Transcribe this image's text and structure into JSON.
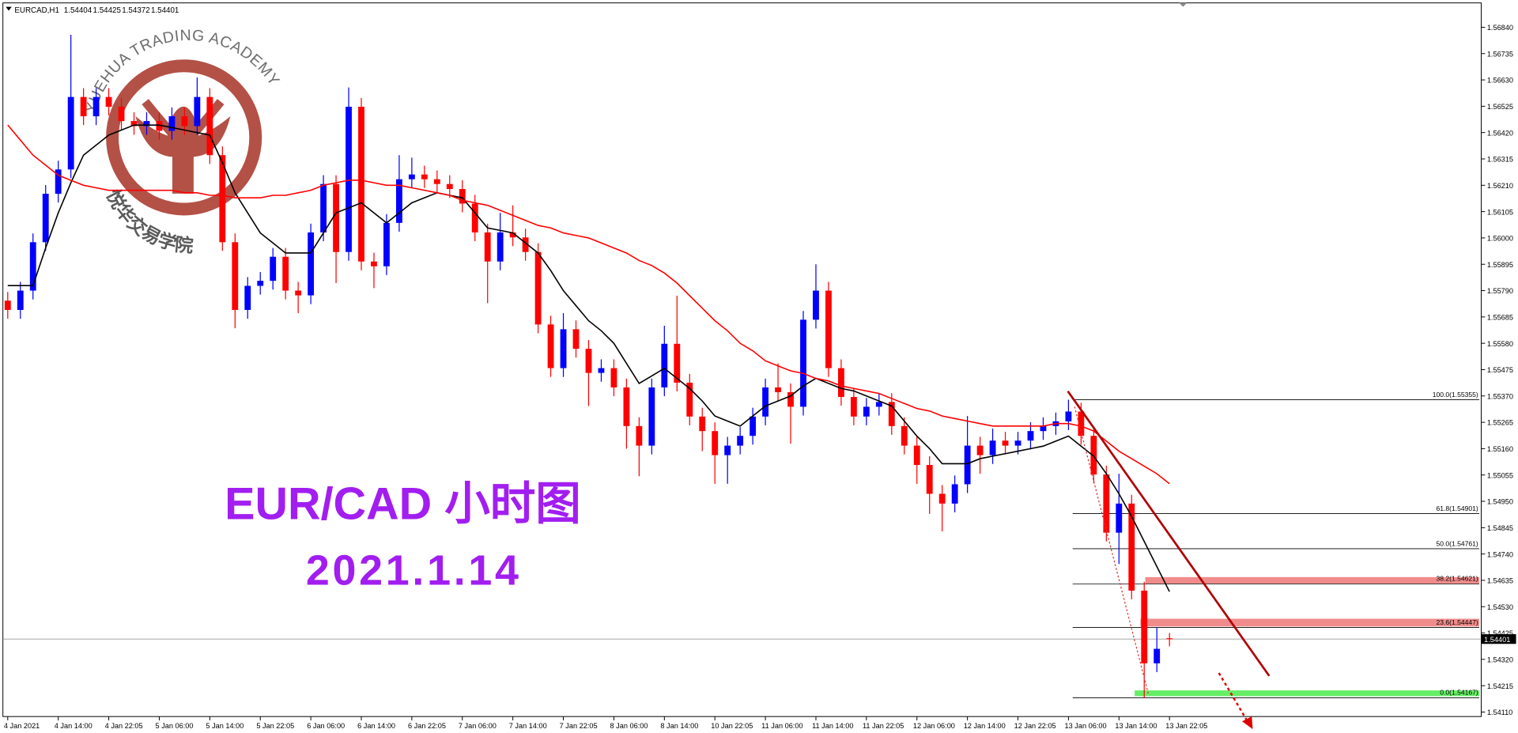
{
  "chart_data": {
    "type": "candlestick",
    "symbol": "EURCAD,H1",
    "header_values": [
      1.54404,
      1.54425,
      1.54372,
      1.54401
    ],
    "title": "EUR/CAD 小时图",
    "subtitle": "2021.1.14",
    "brand": "YUEHUA TRADING ACADEMY",
    "brand_cn": "悦华交易学院",
    "up_color": "#0000ff",
    "down_color": "#ff0000",
    "categories": [
      "4 Jan 2021",
      null,
      null,
      null,
      "4 Jan 14:00",
      null,
      null,
      null,
      "4 Jan 22:05",
      null,
      null,
      null,
      "5 Jan 06:00",
      null,
      null,
      null,
      "5 Jan 14:00",
      null,
      null,
      null,
      "5 Jan 22:05",
      null,
      null,
      null,
      "6 Jan 06:00",
      null,
      null,
      null,
      "6 Jan 14:00",
      null,
      null,
      null,
      "6 Jan 22:05",
      null,
      null,
      null,
      "7 Jan 06:00",
      null,
      null,
      null,
      "7 Jan 14:00",
      null,
      null,
      null,
      "7 Jan 22:05",
      null,
      null,
      null,
      "8 Jan 06:00",
      null,
      null,
      null,
      "8 Jan 14:00",
      null,
      null,
      null,
      "10 Jan 22:05",
      null,
      null,
      null,
      "11 Jan 06:00",
      null,
      null,
      null,
      "11 Jan 14:00",
      null,
      null,
      null,
      "11 Jan 22:05",
      null,
      null,
      null,
      "12 Jan 06:00",
      null,
      null,
      null,
      "12 Jan 14:00",
      null,
      null,
      null,
      "12 Jan 22:05",
      null,
      null,
      null,
      "13 Jan 06:00",
      null,
      null,
      null,
      "13 Jan 14:00",
      null,
      null,
      null,
      "13 Jan 22:05"
    ],
    "open": [
      1.5575,
      1.55713,
      1.5579,
      1.55983,
      1.56176,
      1.56273,
      1.56562,
      1.56485,
      1.56562,
      1.56523,
      1.56466,
      1.56446,
      1.56466,
      1.56427,
      1.56485,
      1.56446,
      1.56562,
      1.5633,
      1.55983,
      1.55713,
      1.55809,
      1.55829,
      1.55925,
      1.5579,
      1.55771,
      1.56022,
      1.56215,
      1.55944,
      1.56523,
      1.55906,
      1.55887,
      1.5606,
      1.56234,
      1.56253,
      1.56234,
      1.56215,
      1.56195,
      1.56137,
      1.56022,
      1.55906,
      1.56022,
      1.56002,
      1.55944,
      1.55655,
      1.55481,
      1.55636,
      1.55558,
      1.55462,
      1.55481,
      1.55404,
      1.5525,
      1.55172,
      1.55404,
      1.55578,
      1.55423,
      1.55288,
      1.5523,
      1.55134,
      1.55172,
      1.55211,
      1.55288,
      1.55404,
      1.55385,
      1.55327,
      1.55674,
      1.5579,
      1.55481,
      1.55366,
      1.55288,
      1.55327,
      1.55346,
      1.5525,
      1.55172,
      1.55095,
      1.5498,
      1.54941,
      1.55018,
      1.55172,
      1.55134,
      1.55192,
      1.55172,
      1.55192,
      1.5523,
      1.5525,
      1.55269,
      1.55308,
      1.55211,
      1.55057,
      1.54825,
      1.54941,
      1.54594,
      1.54304,
      1.54404
    ],
    "high": [
      1.55785,
      1.55825,
      1.56018,
      1.56211,
      1.56308,
      1.5681,
      1.56597,
      1.56597,
      1.56597,
      1.56558,
      1.56501,
      1.56501,
      1.56501,
      1.5652,
      1.5652,
      1.5664,
      1.56597,
      1.56365,
      1.56018,
      1.55844,
      1.55864,
      1.5596,
      1.5596,
      1.55825,
      1.56057,
      1.5625,
      1.5625,
      1.566,
      1.56558,
      1.55941,
      1.56095,
      1.5633,
      1.5632,
      1.56288,
      1.56269,
      1.5625,
      1.5623,
      1.56172,
      1.56057,
      1.561,
      1.5613,
      1.56037,
      1.55979,
      1.5569,
      1.557,
      1.55671,
      1.55593,
      1.55516,
      1.55516,
      1.55439,
      1.55285,
      1.55439,
      1.5565,
      1.5577,
      1.55458,
      1.55323,
      1.55265,
      1.55207,
      1.55246,
      1.55323,
      1.55439,
      1.555,
      1.5542,
      1.55709,
      1.55895,
      1.55825,
      1.55516,
      1.55401,
      1.55362,
      1.55381,
      1.55381,
      1.55285,
      1.55207,
      1.5513,
      1.55015,
      1.55053,
      1.5529,
      1.55207,
      1.5524,
      1.55227,
      1.55227,
      1.55265,
      1.55285,
      1.55304,
      1.55355,
      1.55343,
      1.55246,
      1.55092,
      1.5506,
      1.54976,
      1.54629,
      1.54447,
      1.54425
    ],
    "low": [
      1.55678,
      1.55678,
      1.55755,
      1.55948,
      1.56141,
      1.56238,
      1.5645,
      1.5645,
      1.56488,
      1.56431,
      1.56411,
      1.56411,
      1.56392,
      1.56392,
      1.56411,
      1.56411,
      1.56295,
      1.55948,
      1.5564,
      1.55678,
      1.55774,
      1.55794,
      1.55755,
      1.557,
      1.55736,
      1.55987,
      1.5582,
      1.55909,
      1.55871,
      1.558,
      1.55852,
      1.56025,
      1.56199,
      1.56199,
      1.5618,
      1.5616,
      1.56102,
      1.55987,
      1.5574,
      1.55871,
      1.55967,
      1.55909,
      1.5562,
      1.55446,
      1.55446,
      1.55523,
      1.5533,
      1.55427,
      1.55369,
      1.5516,
      1.5505,
      1.55137,
      1.55369,
      1.55388,
      1.55253,
      1.5515,
      1.5502,
      1.5502,
      1.55137,
      1.55176,
      1.55253,
      1.5535,
      1.5518,
      1.55292,
      1.55639,
      1.55446,
      1.55331,
      1.55253,
      1.55253,
      1.55292,
      1.55215,
      1.55137,
      1.5502,
      1.549,
      1.5483,
      1.54906,
      1.54983,
      1.5506,
      1.55099,
      1.55137,
      1.55137,
      1.55157,
      1.55195,
      1.55215,
      1.55234,
      1.55176,
      1.55022,
      1.5479,
      1.547,
      1.54559,
      1.54167,
      1.54269,
      1.54372
    ],
    "close": [
      1.55713,
      1.5579,
      1.55983,
      1.56176,
      1.56273,
      1.56562,
      1.56485,
      1.56562,
      1.56523,
      1.56466,
      1.56446,
      1.56466,
      1.56427,
      1.56485,
      1.56446,
      1.56562,
      1.5633,
      1.55983,
      1.55713,
      1.55809,
      1.55829,
      1.55925,
      1.5579,
      1.55771,
      1.56022,
      1.56215,
      1.55944,
      1.56523,
      1.55906,
      1.55887,
      1.5606,
      1.56234,
      1.56253,
      1.56234,
      1.56215,
      1.56195,
      1.56137,
      1.56022,
      1.55906,
      1.56022,
      1.56002,
      1.55944,
      1.55655,
      1.55481,
      1.55636,
      1.55558,
      1.55462,
      1.55481,
      1.55404,
      1.5525,
      1.55172,
      1.55404,
      1.55578,
      1.55423,
      1.55288,
      1.5523,
      1.55134,
      1.55172,
      1.55211,
      1.55288,
      1.55404,
      1.55385,
      1.55327,
      1.55674,
      1.5579,
      1.55481,
      1.55366,
      1.55288,
      1.55327,
      1.55346,
      1.5525,
      1.55172,
      1.55095,
      1.5498,
      1.54941,
      1.55018,
      1.55172,
      1.55134,
      1.55192,
      1.55172,
      1.55192,
      1.5523,
      1.5525,
      1.55269,
      1.55308,
      1.55211,
      1.55057,
      1.54825,
      1.54941,
      1.54594,
      1.54304,
      1.54362,
      1.54401
    ],
    "moving_averages": [
      {
        "color": "#000000",
        "values": [
          1.5581,
          1.5581,
          1.5581,
          1.5596,
          1.561,
          1.5622,
          1.5633,
          1.5637,
          1.5641,
          1.5643,
          1.5645,
          1.5645,
          1.5645,
          1.5644,
          1.5643,
          1.5642,
          1.5641,
          1.563,
          1.5618,
          1.561,
          1.5602,
          1.5598,
          1.5594,
          1.5594,
          1.5594,
          1.5602,
          1.561,
          1.5612,
          1.5614,
          1.561,
          1.5606,
          1.561,
          1.5614,
          1.5616,
          1.5618,
          1.5617,
          1.5616,
          1.561,
          1.5604,
          1.5603,
          1.5602,
          1.5598,
          1.5594,
          1.5587,
          1.5579,
          1.5573,
          1.5567,
          1.5563,
          1.5558,
          1.555,
          1.5542,
          1.5545,
          1.5548,
          1.5544,
          1.554,
          1.5535,
          1.5529,
          1.5527,
          1.5525,
          1.5529,
          1.5533,
          1.5535,
          1.5537,
          1.5541,
          1.5544,
          1.5542,
          1.554,
          1.5539,
          1.5537,
          1.5535,
          1.5533,
          1.5527,
          1.5521,
          1.5516,
          1.551,
          1.551,
          1.551,
          1.5512,
          1.5513,
          1.5514,
          1.5515,
          1.5516,
          1.5517,
          1.5519,
          1.5521,
          1.5517,
          1.5513,
          1.5506,
          1.5498,
          1.5489,
          1.5479,
          1.5469,
          1.5459
        ]
      },
      {
        "color": "#ff0000",
        "values": [
          1.5645,
          1.5639,
          1.5633,
          1.5629,
          1.5625,
          1.5623,
          1.5621,
          1.562,
          1.5619,
          1.5619,
          1.5619,
          1.5619,
          1.5619,
          1.5619,
          1.5618,
          1.5618,
          1.5617,
          1.5617,
          1.5616,
          1.5616,
          1.5616,
          1.5617,
          1.5617,
          1.5618,
          1.5619,
          1.5621,
          1.5622,
          1.5623,
          1.5623,
          1.5622,
          1.5621,
          1.5621,
          1.562,
          1.5619,
          1.5618,
          1.5617,
          1.5615,
          1.5614,
          1.5613,
          1.5611,
          1.5609,
          1.5607,
          1.5605,
          1.5604,
          1.5602,
          1.5601,
          1.56,
          1.5598,
          1.5596,
          1.5594,
          1.5591,
          1.5589,
          1.5586,
          1.5582,
          1.5577,
          1.5572,
          1.5567,
          1.5563,
          1.5558,
          1.5555,
          1.5551,
          1.5549,
          1.5547,
          1.5546,
          1.5544,
          1.5543,
          1.5541,
          1.554,
          1.5539,
          1.5538,
          1.5536,
          1.5534,
          1.5532,
          1.5531,
          1.5529,
          1.5528,
          1.5527,
          1.5526,
          1.5525,
          1.5525,
          1.5525,
          1.5525,
          1.5525,
          1.5526,
          1.5526,
          1.5525,
          1.5523,
          1.5519,
          1.5515,
          1.5512,
          1.5509,
          1.5506,
          1.5502
        ]
      }
    ],
    "current_price": 1.54401,
    "fibonacci": [
      {
        "value": 1.55355,
        "label": "100.0(1.55355)"
      },
      {
        "value": 1.54901,
        "label": "61.8(1.54901)"
      },
      {
        "value": 1.54761,
        "label": "50.0(1.54761)"
      },
      {
        "value": 1.54621,
        "label": "38.2(1.54621)"
      },
      {
        "value": 1.54447,
        "label": "23.6(1.54447)"
      },
      {
        "value": 1.54167,
        "label": "0.0(1.54167)"
      }
    ],
    "ylim": [
      1.54092,
      1.56937
    ],
    "yticks": [
      {
        "value": 1.5684,
        "label": "1.56840"
      },
      {
        "value": 1.56735,
        "label": "1.56735"
      },
      {
        "value": 1.5663,
        "label": "1.56630"
      },
      {
        "value": 1.56525,
        "label": "1.56525"
      },
      {
        "value": 1.5642,
        "label": "1.56420"
      },
      {
        "value": 1.56315,
        "label": "1.56315"
      },
      {
        "value": 1.5621,
        "label": "1.56210"
      },
      {
        "value": 1.56105,
        "label": "1.56105"
      },
      {
        "value": 1.56,
        "label": "1.56000"
      },
      {
        "value": 1.55895,
        "label": "1.55895"
      },
      {
        "value": 1.5579,
        "label": "1.55790"
      },
      {
        "value": 1.55685,
        "label": "1.55685"
      },
      {
        "value": 1.5558,
        "label": "1.55580"
      },
      {
        "value": 1.55475,
        "label": "1.55475"
      },
      {
        "value": 1.5537,
        "label": "1.55370"
      },
      {
        "value": 1.55265,
        "label": "1.55265"
      },
      {
        "value": 1.5516,
        "label": "1.55160"
      },
      {
        "value": 1.55055,
        "label": "1.55055"
      },
      {
        "value": 1.5495,
        "label": "1.54950"
      },
      {
        "value": 1.54845,
        "label": "1.54845"
      },
      {
        "value": 1.5474,
        "label": "1.54740"
      },
      {
        "value": 1.54635,
        "label": "1.54635"
      },
      {
        "value": 1.5453,
        "label": "1.54530"
      },
      {
        "value": 1.54425,
        "label": "1.54425"
      },
      {
        "value": 1.5432,
        "label": "1.54320"
      },
      {
        "value": 1.54215,
        "label": "1.54215"
      },
      {
        "value": 1.5411,
        "label": "1.54110"
      }
    ],
    "grid": false
  }
}
